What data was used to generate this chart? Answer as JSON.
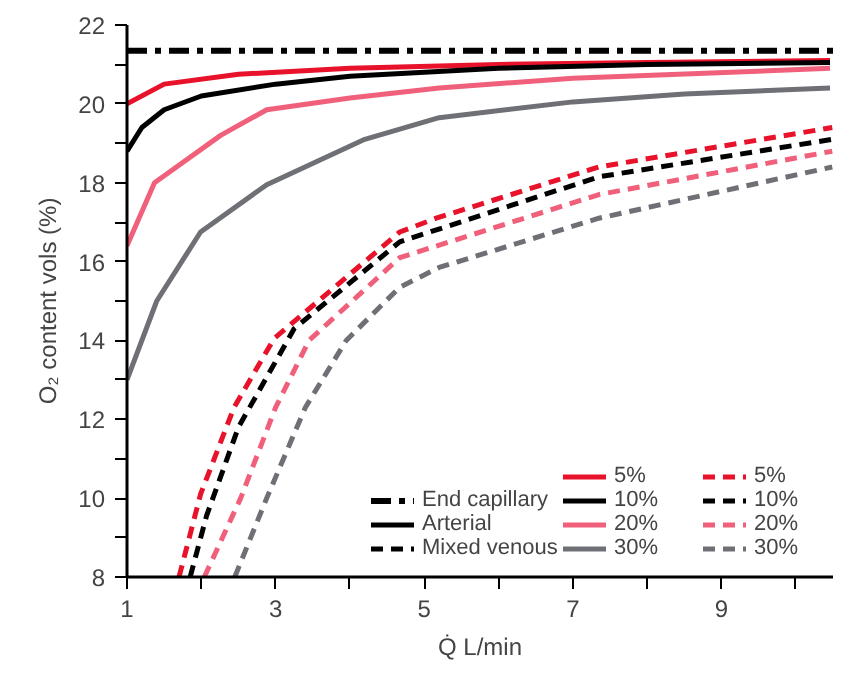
{
  "chart_data": {
    "type": "line",
    "xlabel": "Q̇ L/min",
    "ylabel": "O₂ content vols (%)",
    "xlim": [
      1,
      10.5
    ],
    "ylim": [
      8,
      22
    ],
    "xticks": [
      1,
      {
        "value": 2,
        "label": null
      },
      3,
      {
        "value": 4,
        "label": null
      },
      5,
      {
        "value": 6,
        "label": null
      },
      7,
      {
        "value": 8,
        "label": null
      },
      9,
      {
        "value": 10,
        "label": null
      }
    ],
    "yticks": [
      8,
      {
        "value": 9,
        "label": null
      },
      10,
      {
        "value": 11,
        "label": null
      },
      12,
      {
        "value": 13,
        "label": null
      },
      14,
      {
        "value": 15,
        "label": null
      },
      16,
      {
        "value": 17,
        "label": null
      },
      18,
      {
        "value": 19,
        "label": null
      },
      20,
      {
        "value": 21,
        "label": null
      },
      22
    ],
    "grid": false,
    "legend": "bottom right",
    "marker": "none",
    "annotations": [
      "Arterial",
      "Mixed venous"
    ],
    "series": [
      {
        "name": "End capillary",
        "color": "#000000",
        "line_style": "dashdot",
        "x": [
          1,
          10.5
        ],
        "values": [
          21.35,
          21.35
        ]
      },
      {
        "name": "5%",
        "color": "#e8132a",
        "line_style": "solid",
        "x": [
          1,
          1.5,
          2.5,
          4,
          6,
          8,
          10.46
        ],
        "values": [
          20.0,
          20.5,
          20.75,
          20.9,
          21.0,
          21.05,
          21.1
        ]
      },
      {
        "name": "10%",
        "color": "#000000",
        "line_style": "solid",
        "x": [
          1,
          1.2,
          1.5,
          2,
          3,
          4,
          6,
          8,
          10.46
        ],
        "values": [
          18.8,
          19.4,
          19.85,
          20.2,
          20.5,
          20.7,
          20.9,
          21.0,
          21.05
        ]
      },
      {
        "name": "20%",
        "color": "#f0607a",
        "line_style": "solid",
        "x": [
          1,
          1.37,
          2.26,
          2.88,
          4,
          5.2,
          7,
          10.46
        ],
        "values": [
          16.4,
          18.0,
          19.2,
          19.85,
          20.15,
          20.4,
          20.65,
          20.9
        ]
      },
      {
        "name": "30%",
        "color": "#6e7076",
        "line_style": "solid",
        "x": [
          1,
          1.4,
          1.99,
          2.88,
          4.2,
          5.2,
          7,
          8.5,
          10.46
        ],
        "values": [
          13.0,
          15.0,
          16.75,
          17.95,
          19.1,
          19.65,
          20.05,
          20.25,
          20.4
        ]
      },
      {
        "name": "5%",
        "color": "#e8132a",
        "line_style": "dashed",
        "x": [
          1.7,
          1.99,
          2.44,
          2.98,
          4.67,
          5.16,
          7.35,
          10.49
        ],
        "values": [
          8.0,
          10.1,
          12.3,
          14.05,
          16.75,
          17.1,
          18.4,
          19.4
        ]
      },
      {
        "name": "10%",
        "color": "#000000",
        "line_style": "dashed",
        "x": [
          1.85,
          2.07,
          2.5,
          3.25,
          4.67,
          7.35,
          10.49
        ],
        "values": [
          8.0,
          9.55,
          11.8,
          14.3,
          16.5,
          18.15,
          19.1
        ]
      },
      {
        "name": "20%",
        "color": "#f0607a",
        "line_style": "dashed",
        "x": [
          2.04,
          2.53,
          3.0,
          3.45,
          4.67,
          7.35,
          10.49
        ],
        "values": [
          8.0,
          10.0,
          12.3,
          14.0,
          16.1,
          17.7,
          18.8
        ]
      },
      {
        "name": "30%",
        "color": "#6e7076",
        "line_style": "dashed",
        "x": [
          2.45,
          2.88,
          3.4,
          3.95,
          4.67,
          5.2,
          7.35,
          10.49
        ],
        "values": [
          8.0,
          10.0,
          12.3,
          14.0,
          15.35,
          15.85,
          17.1,
          18.4
        ]
      }
    ]
  }
}
